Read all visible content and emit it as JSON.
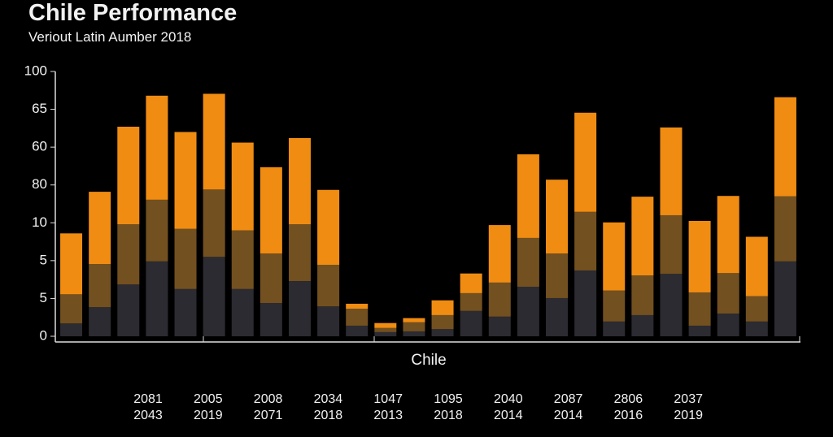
{
  "chart_data": {
    "type": "stacked_bar",
    "title": "Chile Performance",
    "subtitle": "Veriout Latin Aumber 2018",
    "x_label": "Chile",
    "categories": [
      null,
      null,
      null,
      null,
      null,
      null,
      null,
      null,
      null,
      null,
      null,
      null,
      null,
      null,
      null,
      null,
      null,
      null,
      null,
      null,
      null,
      null,
      null,
      null,
      null,
      null
    ],
    "series": [
      {
        "color": "#2b2b31",
        "values": [
          0.34,
          0.77,
          1.37,
          1.98,
          1.25,
          2.1,
          1.25,
          0.88,
          1.46,
          0.79,
          0.28,
          0.11,
          0.13,
          0.19,
          0.67,
          0.52,
          1.31,
          1.01,
          1.74,
          0.39,
          0.56,
          1.65,
          0.28,
          0.6,
          0.39,
          1.98
        ]
      },
      {
        "color": "#735020",
        "values": [
          0.77,
          1.14,
          1.59,
          1.63,
          1.59,
          1.78,
          1.55,
          1.31,
          1.5,
          1.1,
          0.45,
          0.11,
          0.24,
          0.37,
          0.47,
          0.9,
          1.29,
          1.18,
          1.55,
          0.82,
          1.05,
          1.55,
          0.88,
          1.07,
          0.67,
          1.72
        ]
      },
      {
        "color": "#f08c12",
        "values": [
          1.61,
          1.91,
          2.58,
          2.75,
          2.56,
          2.53,
          2.32,
          2.28,
          2.28,
          1.98,
          0.13,
          0.13,
          0.11,
          0.39,
          0.52,
          1.52,
          2.21,
          1.95,
          2.62,
          1.8,
          2.08,
          2.32,
          1.89,
          2.04,
          1.57,
          2.62
        ]
      }
    ],
    "ylim": [
      0,
      7
    ],
    "yticks": [
      0,
      {
        "value": 1,
        "label": "5"
      },
      {
        "value": 2,
        "label": "5"
      },
      {
        "value": 3,
        "label": "10"
      },
      {
        "value": 4,
        "label": "80"
      },
      {
        "value": 5,
        "label": "60"
      },
      {
        "value": 6,
        "label": "65"
      },
      {
        "value": 7,
        "label": "100"
      }
    ],
    "group_labels": [
      [
        "2081",
        "2043"
      ],
      [
        "2005",
        "2019"
      ],
      [
        "2008",
        "2071"
      ],
      [
        "2034",
        "2018"
      ],
      [
        "1047",
        "2013"
      ],
      [
        "1095",
        "2018"
      ],
      [
        "2040",
        "2014"
      ],
      [
        "2087",
        "2014"
      ],
      [
        "2806",
        "2016"
      ],
      [
        "2037",
        "2019"
      ]
    ],
    "grid": false
  }
}
